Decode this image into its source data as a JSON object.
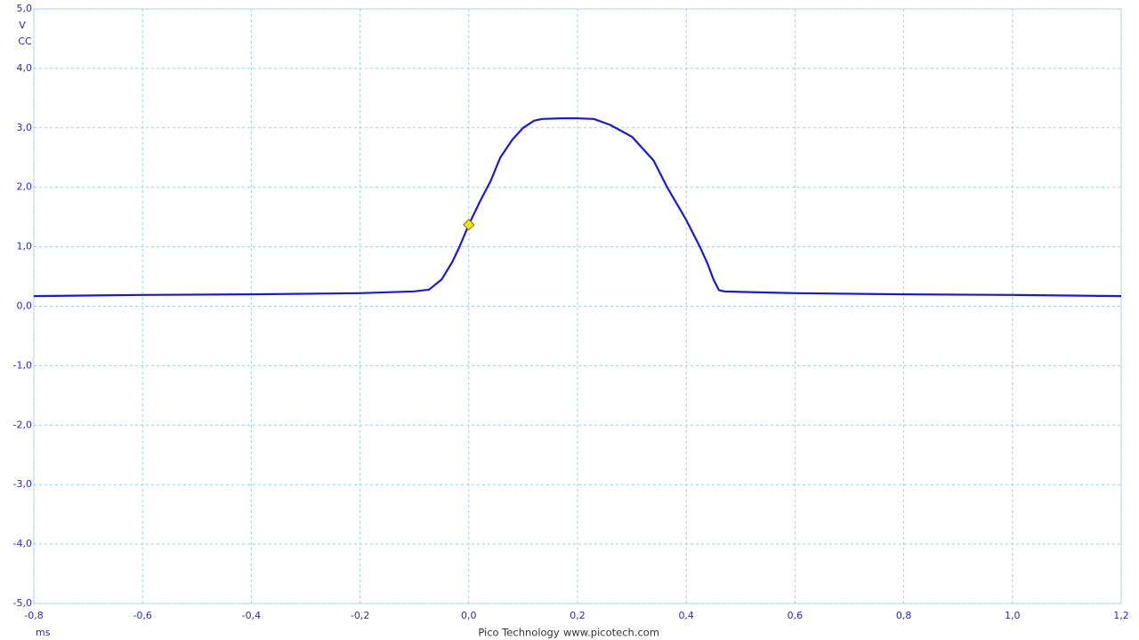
{
  "chart_data": {
    "type": "line",
    "y_units": [
      "V",
      "CC"
    ],
    "x_unit": "ms",
    "footer": [
      "Pico Technology",
      "www.picotech.com"
    ],
    "x": [
      -0.8,
      -0.6,
      -0.4,
      -0.2,
      -0.1,
      -0.073,
      -0.05,
      -0.03,
      -0.017,
      0,
      0.02,
      0.04,
      0.058,
      0.08,
      0.1,
      0.12,
      0.135,
      0.17,
      0.2,
      0.23,
      0.26,
      0.3,
      0.34,
      0.365,
      0.4,
      0.425,
      0.44,
      0.45,
      0.46,
      0.47,
      0.5,
      0.6,
      0.8,
      1.0,
      1.2
    ],
    "series": [
      {
        "color": "#1a1ad0",
        "values": [
          0.17,
          0.19,
          0.2,
          0.22,
          0.25,
          0.28,
          0.45,
          0.75,
          1.0,
          1.37,
          1.75,
          2.1,
          2.5,
          2.8,
          3.0,
          3.12,
          3.15,
          3.16,
          3.16,
          3.15,
          3.05,
          2.85,
          2.45,
          2.0,
          1.45,
          1.0,
          0.7,
          0.45,
          0.27,
          0.25,
          0.24,
          0.22,
          0.2,
          0.19,
          0.17
        ]
      }
    ],
    "trigger": {
      "x": 0,
      "y": 1.37,
      "color": "#f0e020"
    },
    "xlim": [
      -0.8,
      1.2
    ],
    "ylim": [
      -5,
      5
    ],
    "xticks": [
      {
        "value": -0.8,
        "label": "-0,8"
      },
      {
        "value": -0.6,
        "label": "-0,6"
      },
      {
        "value": -0.4,
        "label": "-0,4"
      },
      {
        "value": -0.2,
        "label": "-0,2"
      },
      {
        "value": 0,
        "label": "0,0"
      },
      {
        "value": 0.2,
        "label": "0,2"
      },
      {
        "value": 0.4,
        "label": "0,4"
      },
      {
        "value": 0.6,
        "label": "0,6"
      },
      {
        "value": 0.8,
        "label": "0,8"
      },
      {
        "value": 1.0,
        "label": "1,0"
      },
      {
        "value": 1.2,
        "label": "1,2"
      }
    ],
    "yticks": [
      {
        "value": 5,
        "label": "5,0"
      },
      {
        "value": 4,
        "label": "4,0"
      },
      {
        "value": 3,
        "label": "3,0"
      },
      {
        "value": 2,
        "label": "2,0"
      },
      {
        "value": 1,
        "label": "1,0"
      },
      {
        "value": 0,
        "label": "0,0"
      },
      {
        "value": -1,
        "label": "-1,0"
      },
      {
        "value": -2,
        "label": "-2,0"
      },
      {
        "value": -3,
        "label": "-3,0"
      },
      {
        "value": -4,
        "label": "-4,0"
      },
      {
        "value": -5,
        "label": "-5,0"
      }
    ],
    "grid": true
  }
}
